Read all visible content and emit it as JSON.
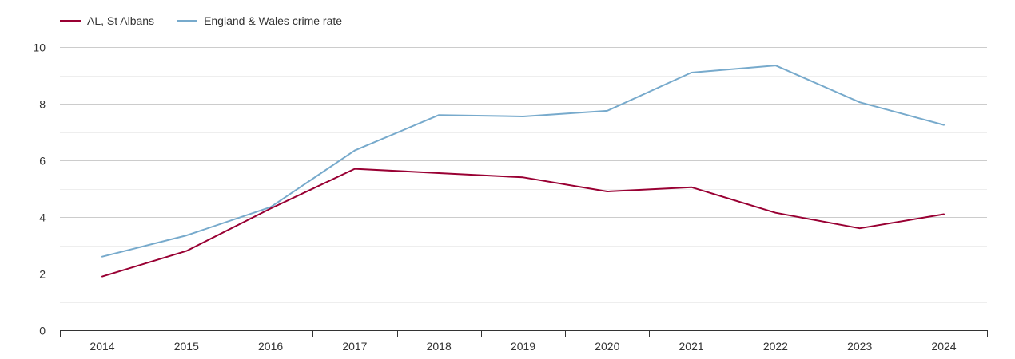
{
  "chart_data": {
    "type": "line",
    "title": "",
    "xlabel": "",
    "ylabel": "",
    "x": [
      "2014",
      "2015",
      "2016",
      "2017",
      "2018",
      "2019",
      "2020",
      "2021",
      "2022",
      "2023",
      "2024"
    ],
    "ylim": [
      0,
      10
    ],
    "yticks": [
      "0",
      "2",
      "4",
      "6",
      "8",
      "10"
    ],
    "grid": true,
    "legend_position": "top-left",
    "series": [
      {
        "name": "AL, St Albans",
        "color": "#990033",
        "values": [
          1.9,
          2.8,
          4.3,
          5.7,
          5.55,
          5.4,
          4.9,
          5.05,
          4.15,
          3.6,
          4.1
        ]
      },
      {
        "name": "England & Wales crime rate",
        "color": "#77aacc",
        "values": [
          2.6,
          3.35,
          4.35,
          6.35,
          7.6,
          7.55,
          7.75,
          9.1,
          9.35,
          8.05,
          7.25
        ]
      }
    ]
  }
}
